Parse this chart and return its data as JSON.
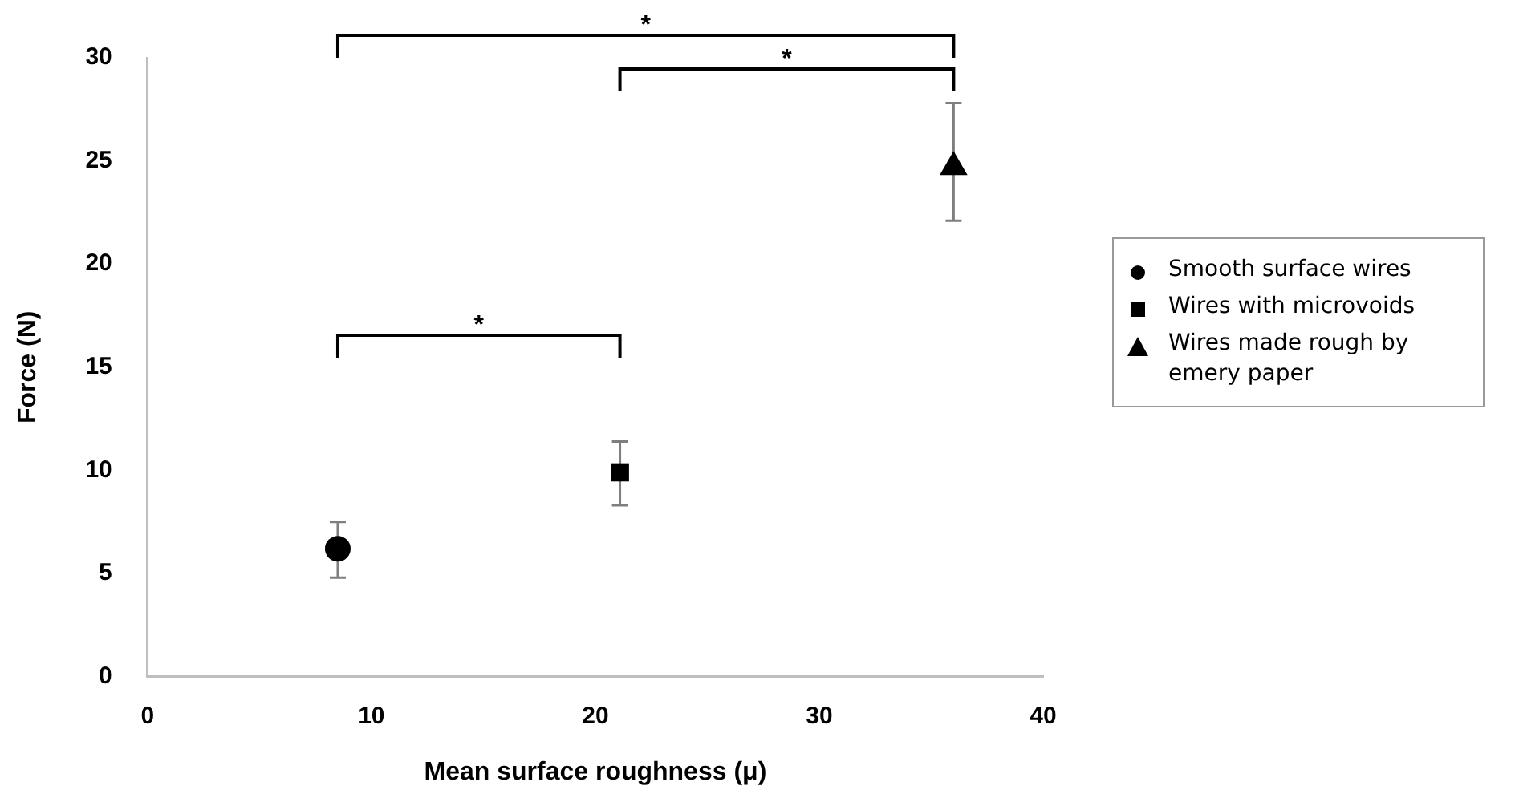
{
  "chart_data": {
    "type": "scatter",
    "xlabel": "Mean surface roughness (μ)",
    "ylabel": "Force (N)",
    "xlim": [
      0,
      40
    ],
    "xticks": [
      0,
      10,
      20,
      30,
      40
    ],
    "ylim": [
      0,
      30
    ],
    "yticks": [
      0,
      5,
      10,
      15,
      20,
      25,
      30
    ],
    "grid": false,
    "legend": "right",
    "series": [
      {
        "name": "Smooth surface wires",
        "color": "#000000",
        "marker": "circle",
        "x": [
          8.5
        ],
        "values": [
          6.2
        ],
        "errors": [
          [
            4.8,
            7.5
          ]
        ]
      },
      {
        "name": "Wires with microvoids",
        "color": "#000000",
        "marker": "square",
        "x": [
          21.1
        ],
        "values": [
          9.9
        ],
        "errors": [
          [
            8.3,
            11.4
          ]
        ]
      },
      {
        "name": "Wires made rough by emery paper",
        "color": "#000000",
        "marker": "triangle",
        "x": [
          36
        ],
        "values": [
          24.7
        ],
        "errors": [
          [
            22.1,
            27.8
          ]
        ]
      }
    ],
    "annotations": [
      "*",
      "*",
      "*"
    ]
  }
}
